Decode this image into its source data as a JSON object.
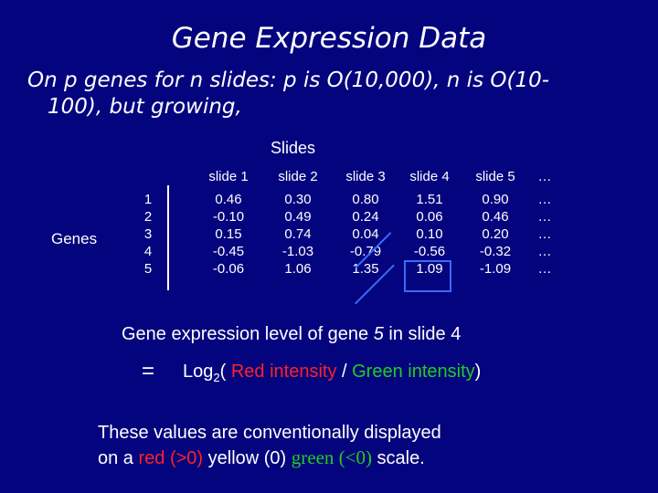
{
  "title": "Gene Expression Data",
  "subtitle_line1": "On p genes for n slides: p  is O(10,000), n is O(10-",
  "subtitle_line2": "100), but growing,",
  "table": {
    "slides_header": "Slides",
    "genes_label": "Genes",
    "columns": [
      "slide 1",
      "slide 2",
      "slide 3",
      "slide 4",
      "slide 5",
      "…"
    ],
    "row_numbers": [
      "1",
      "2",
      "3",
      "4",
      "5"
    ],
    "values": [
      [
        "0.46",
        "-0.10",
        "0.15",
        "-0.45",
        "-0.06"
      ],
      [
        "0.30",
        "0.49",
        "0.74",
        "-1.03",
        "1.06"
      ],
      [
        "0.80",
        "0.24",
        "0.04",
        "-0.79",
        "1.35"
      ],
      [
        "1.51",
        "0.06",
        "0.10",
        "-0.56",
        "1.09"
      ],
      [
        "0.90",
        "0.46",
        "0.20",
        "-0.32",
        "-1.09"
      ],
      [
        "…",
        "…",
        "…",
        "…",
        "…"
      ]
    ]
  },
  "explanation": {
    "gene_level": "Gene expression level of gene 5 in slide 4",
    "gene_level_parts": [
      "Gene expression level of gene ",
      "5",
      " in slide ",
      "4"
    ],
    "equals": "=",
    "log_prefix": "Log",
    "log_sub": "2",
    "log_open": "( ",
    "red_intensity": "Red intensity",
    "slash": " / ",
    "green_intensity": "Green intensity",
    "log_close": ")"
  },
  "convention": {
    "line1": "These values are conventionally displayed",
    "prefix": "on a ",
    "red_part": "red (>0)",
    "yellow_part": " yellow (0) ",
    "green_part": "green (<0)",
    "suffix": " scale."
  },
  "colors": {
    "background": "#04047e",
    "red": "#ff2222",
    "green": "#22cc22",
    "highlight": "#3a6bff"
  }
}
